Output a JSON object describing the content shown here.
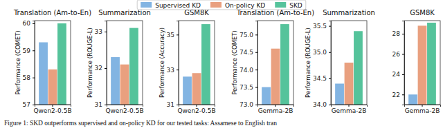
{
  "chart_data": [
    {
      "type": "bar",
      "title": "Translation (Am-to-En)",
      "y_label": "Performance (COMET)",
      "categories": [
        "Qwen2-0.5B"
      ],
      "series": [
        {
          "name": "Supervised KD",
          "color": "#82b4e2",
          "values": [
            59.3
          ]
        },
        {
          "name": "On-policy KD",
          "color": "#e9a07f",
          "values": [
            58.3
          ]
        },
        {
          "name": "SKD",
          "color": "#55c39b",
          "values": [
            60.0
          ]
        }
      ],
      "ylim": [
        57,
        60.1
      ],
      "yticks": [
        57,
        58,
        59,
        60
      ],
      "legend": "top"
    },
    {
      "type": "bar",
      "title": "Summarization",
      "y_label": "Performance (ROUGE-L)",
      "categories": [
        "Qwen2-0.5B"
      ],
      "series": [
        {
          "name": "Supervised KD",
          "color": "#82b4e2",
          "values": [
            32.3
          ]
        },
        {
          "name": "On-policy KD",
          "color": "#e9a07f",
          "values": [
            32.1
          ]
        },
        {
          "name": "SKD",
          "color": "#55c39b",
          "values": [
            33.1
          ]
        }
      ],
      "ylim": [
        31,
        33.3
      ],
      "yticks": [
        31,
        32,
        33
      ]
    },
    {
      "type": "bar",
      "title": "GSM8K",
      "y_label": "Performance (Accuracy)",
      "categories": [
        "Qwen2-0.5B"
      ],
      "series": [
        {
          "name": "Supervised KD",
          "color": "#82b4e2",
          "values": [
            32.6
          ]
        },
        {
          "name": "On-policy KD",
          "color": "#e9a07f",
          "values": [
            32.8
          ]
        },
        {
          "name": "SKD",
          "color": "#55c39b",
          "values": [
            35.6
          ]
        }
      ],
      "ylim": [
        31,
        35.8
      ],
      "yticks": [
        31,
        33,
        35
      ]
    },
    {
      "type": "bar",
      "title": "Translation (Am-to-En)",
      "y_label": "Performance (COMET)",
      "categories": [
        "Gemma-2B"
      ],
      "series": [
        {
          "name": "Supervised KD",
          "color": "#82b4e2",
          "values": [
            73.5
          ]
        },
        {
          "name": "On-policy KD",
          "color": "#e9a07f",
          "values": [
            74.6
          ]
        },
        {
          "name": "SKD",
          "color": "#55c39b",
          "values": [
            75.3
          ]
        }
      ],
      "ylim": [
        73,
        75.4
      ],
      "yticks": [
        {
          "value": 73,
          "label": "73.0"
        },
        73.5,
        {
          "value": 74,
          "label": "74.0"
        },
        74.5,
        {
          "value": 75,
          "label": "75.0"
        }
      ]
    },
    {
      "type": "bar",
      "title": "Summarization",
      "y_label": "Performance (ROUGE-L)",
      "categories": [
        "Gemma-2B"
      ],
      "series": [
        {
          "name": "Supervised KD",
          "color": "#82b4e2",
          "values": [
            34.4
          ]
        },
        {
          "name": "On-policy KD",
          "color": "#e9a07f",
          "values": [
            34.8
          ]
        },
        {
          "name": "SKD",
          "color": "#55c39b",
          "values": [
            35.4
          ]
        }
      ],
      "ylim": [
        34,
        35.6
      ],
      "yticks": [
        {
          "value": 34,
          "label": "34.0"
        },
        34.5,
        {
          "value": 35,
          "label": "35.0"
        },
        35.5
      ]
    },
    {
      "type": "bar",
      "title": "GSM8K",
      "categories": [
        "Gemma-2B"
      ],
      "series": [
        {
          "name": "Supervised KD",
          "color": "#82b4e2",
          "values": [
            22.0
          ]
        },
        {
          "name": "On-policy KD",
          "color": "#e9a07f",
          "values": [
            28.8
          ]
        },
        {
          "name": "SKD",
          "color": "#55c39b",
          "values": [
            29.1
          ]
        }
      ],
      "ylim": [
        21,
        29.3
      ],
      "yticks": [
        22,
        24,
        26,
        28
      ]
    }
  ],
  "caption": "Figure 1: SKD outperforms supervised and on-policy KD for our tested tasks: Assamese to English tran"
}
